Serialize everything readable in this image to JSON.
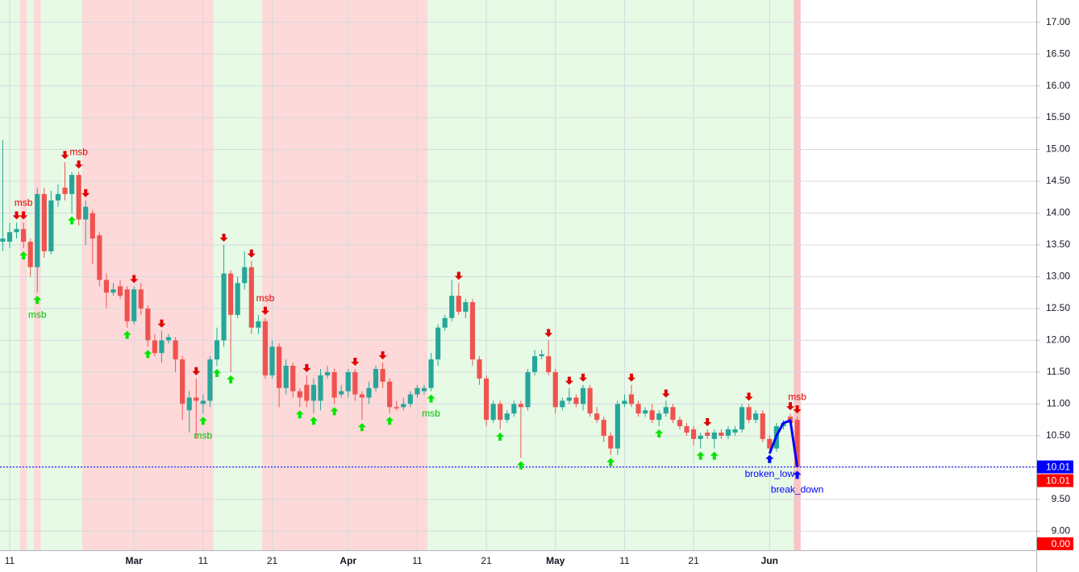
{
  "chart_data": {
    "type": "candlestick",
    "categories": [
      null,
      "11",
      null,
      null,
      null,
      null,
      null,
      null,
      null,
      null,
      null,
      null,
      null,
      null,
      null,
      null,
      null,
      null,
      null,
      "Mar",
      null,
      null,
      null,
      null,
      null,
      null,
      null,
      null,
      null,
      "11",
      null,
      null,
      null,
      null,
      null,
      null,
      null,
      null,
      null,
      "21",
      null,
      null,
      null,
      null,
      null,
      null,
      null,
      null,
      null,
      null,
      "Apr",
      null,
      null,
      null,
      null,
      null,
      null,
      null,
      null,
      null,
      "11",
      null,
      null,
      null,
      null,
      null,
      null,
      null,
      null,
      null,
      "21",
      null,
      null,
      null,
      null,
      null,
      null,
      null,
      null,
      null,
      "May",
      null,
      null,
      null,
      null,
      null,
      null,
      null,
      null,
      null,
      "11",
      null,
      null,
      null,
      null,
      null,
      null,
      null,
      null,
      null,
      "21",
      null,
      null,
      null,
      null,
      null,
      null,
      null,
      null,
      null,
      null,
      "Jun",
      null,
      null,
      null,
      null
    ],
    "open": [
      13.55,
      13.55,
      13.7,
      13.75,
      13.55,
      13.15,
      14.3,
      13.4,
      14.2,
      14.4,
      14.3,
      14.6,
      13.9,
      14.0,
      13.65,
      12.95,
      12.75,
      12.85,
      12.8,
      12.3,
      12.8,
      12.5,
      12.0,
      11.8,
      12.0,
      12.0,
      11.7,
      10.9,
      11.1,
      11.0,
      11.05,
      11.7,
      12.0,
      13.05,
      12.4,
      12.9,
      13.15,
      12.2,
      12.3,
      11.45,
      11.9,
      11.25,
      11.6,
      11.2,
      11.3,
      11.05,
      11.05,
      11.45,
      11.5,
      11.15,
      11.2,
      11.5,
      11.15,
      11.1,
      11.25,
      11.55,
      11.35,
      10.95,
      10.95,
      11.0,
      11.15,
      11.2,
      11.25,
      11.7,
      12.2,
      12.35,
      12.7,
      12.45,
      12.6,
      11.7,
      11.4,
      10.75,
      11.0,
      10.75,
      10.85,
      11.0,
      10.95,
      11.5,
      11.75,
      11.75,
      11.5,
      10.95,
      11.05,
      11.1,
      11.0,
      11.25,
      10.85,
      10.75,
      10.5,
      10.3,
      11.0,
      11.15,
      11.0,
      10.85,
      10.9,
      10.75,
      10.85,
      10.95,
      10.75,
      10.65,
      10.6,
      10.45,
      10.55,
      10.45,
      10.55,
      10.5,
      10.55,
      10.6,
      10.95,
      10.75,
      10.85,
      10.45,
      10.3,
      10.65,
      10.8,
      10.75
    ],
    "high": [
      15.15,
      13.85,
      13.85,
      13.85,
      13.6,
      14.4,
      14.4,
      14.35,
      14.45,
      14.8,
      14.65,
      14.65,
      14.2,
      14.05,
      13.7,
      13.05,
      12.9,
      12.95,
      12.85,
      12.85,
      12.9,
      12.55,
      12.1,
      12.15,
      12.1,
      12.05,
      11.75,
      11.2,
      11.4,
      11.15,
      11.75,
      12.2,
      13.5,
      13.1,
      13.0,
      13.4,
      13.25,
      12.4,
      12.35,
      12.0,
      11.95,
      11.7,
      11.65,
      11.25,
      11.45,
      11.4,
      11.55,
      11.6,
      11.55,
      11.3,
      11.55,
      11.55,
      11.2,
      11.35,
      11.6,
      11.65,
      11.4,
      11.05,
      11.1,
      11.2,
      11.3,
      11.3,
      11.8,
      12.25,
      12.4,
      12.95,
      12.9,
      12.65,
      12.65,
      11.75,
      11.45,
      11.05,
      11.05,
      10.9,
      11.05,
      11.05,
      11.55,
      11.85,
      11.85,
      12.0,
      11.55,
      11.1,
      11.25,
      11.15,
      11.3,
      11.3,
      10.95,
      10.8,
      10.55,
      11.05,
      11.15,
      11.3,
      11.05,
      10.95,
      11.0,
      10.9,
      11.05,
      11.0,
      10.8,
      10.7,
      10.65,
      10.55,
      10.6,
      10.6,
      10.6,
      10.65,
      10.65,
      11.0,
      11.0,
      10.9,
      10.9,
      10.5,
      10.7,
      10.75,
      10.85,
      10.8
    ],
    "low": [
      13.4,
      13.45,
      13.6,
      13.45,
      13.0,
      12.75,
      13.3,
      13.35,
      14.1,
      14.2,
      14.0,
      13.8,
      13.5,
      13.2,
      12.85,
      12.5,
      12.7,
      12.65,
      12.2,
      12.25,
      12.4,
      11.9,
      11.75,
      11.65,
      11.95,
      11.5,
      10.75,
      10.55,
      10.45,
      10.85,
      10.95,
      11.6,
      11.9,
      11.5,
      12.35,
      12.8,
      12.1,
      12.1,
      11.4,
      11.4,
      10.95,
      11.15,
      11.1,
      10.95,
      10.95,
      10.85,
      10.9,
      11.4,
      11.0,
      11.1,
      11.1,
      11.05,
      10.75,
      11.0,
      11.2,
      11.25,
      10.85,
      10.9,
      10.9,
      10.95,
      11.1,
      11.15,
      11.2,
      11.6,
      12.15,
      12.3,
      12.4,
      12.35,
      11.6,
      11.3,
      10.65,
      10.7,
      10.6,
      10.7,
      10.8,
      10.15,
      10.9,
      11.45,
      11.7,
      11.45,
      10.85,
      10.9,
      11.0,
      10.95,
      10.9,
      10.8,
      10.7,
      10.4,
      10.2,
      10.2,
      10.95,
      10.95,
      10.8,
      10.8,
      10.7,
      10.65,
      10.8,
      10.7,
      10.6,
      10.5,
      10.35,
      10.3,
      10.45,
      10.3,
      10.45,
      10.45,
      10.5,
      10.55,
      10.7,
      10.7,
      10.4,
      10.25,
      10.25,
      10.6,
      10.65,
      10.0
    ],
    "close": [
      13.6,
      13.7,
      13.75,
      13.55,
      13.15,
      14.3,
      13.4,
      14.2,
      14.3,
      14.3,
      14.6,
      13.9,
      14.1,
      13.6,
      12.95,
      12.75,
      12.8,
      12.7,
      12.3,
      12.8,
      12.5,
      12.0,
      11.8,
      12.0,
      12.05,
      11.7,
      11.0,
      11.1,
      11.05,
      11.05,
      11.7,
      12.0,
      13.05,
      12.4,
      12.9,
      13.15,
      12.2,
      12.3,
      11.45,
      11.9,
      11.25,
      11.6,
      11.2,
      11.1,
      11.05,
      11.3,
      11.45,
      11.5,
      11.1,
      11.2,
      11.5,
      11.15,
      11.1,
      11.25,
      11.55,
      11.35,
      10.95,
      10.93,
      11.0,
      11.15,
      11.25,
      11.25,
      11.7,
      12.2,
      12.35,
      12.7,
      12.45,
      12.6,
      11.7,
      11.4,
      10.75,
      11.0,
      10.75,
      10.85,
      11.0,
      10.95,
      11.5,
      11.75,
      11.78,
      11.5,
      10.95,
      11.05,
      11.1,
      11.0,
      11.25,
      10.85,
      10.75,
      10.5,
      10.3,
      11.0,
      11.05,
      11.0,
      10.85,
      10.9,
      10.75,
      10.85,
      10.95,
      10.75,
      10.65,
      10.55,
      10.45,
      10.5,
      10.5,
      10.55,
      10.5,
      10.6,
      10.6,
      10.95,
      10.75,
      10.85,
      10.45,
      10.3,
      10.65,
      10.7,
      10.7,
      10.01
    ],
    "up_color": "#26a69a",
    "down_color": "#ef5350",
    "xlim": [
      -0.4,
      149.6
    ],
    "ylim": [
      8.7,
      17.35
    ],
    "yticks": [
      {
        "value": 9,
        "label": "9.00"
      },
      {
        "value": 9.5,
        "label": "9.50"
      },
      {
        "value": 10,
        "label": "10.00"
      },
      {
        "value": 10.5,
        "label": "10.50"
      },
      {
        "value": 11,
        "label": "11.00"
      },
      {
        "value": 11.5,
        "label": "11.50"
      },
      {
        "value": 12,
        "label": "12.00"
      },
      {
        "value": 12.5,
        "label": "12.50"
      },
      {
        "value": 13,
        "label": "13.00"
      },
      {
        "value": 13.5,
        "label": "13.50"
      },
      {
        "value": 14,
        "label": "14.00"
      },
      {
        "value": 14.5,
        "label": "14.50"
      },
      {
        "value": 15,
        "label": "15.00"
      },
      {
        "value": 15.5,
        "label": "15.50"
      },
      {
        "value": 16,
        "label": "16.00"
      },
      {
        "value": 16.5,
        "label": "16.50"
      },
      {
        "value": 17,
        "label": "17.00"
      }
    ],
    "grid": true,
    "bands": [
      {
        "from": 0,
        "to": 2,
        "color": "#e6fae6"
      },
      {
        "from": 3,
        "to": 3,
        "color": "#fdd9d9"
      },
      {
        "from": 4,
        "to": 4,
        "color": "#e6fae6"
      },
      {
        "from": 5,
        "to": 5,
        "color": "#fdd9d9"
      },
      {
        "from": 6,
        "to": 11,
        "color": "#e6fae6"
      },
      {
        "from": 12,
        "to": 30,
        "color": "#fdd9d9"
      },
      {
        "from": 31,
        "to": 37,
        "color": "#e6fae6"
      },
      {
        "from": 38,
        "to": 61,
        "color": "#fdd9d9"
      },
      {
        "from": 62,
        "to": 114,
        "color": "#e6fae6"
      },
      {
        "from": 115,
        "to": 115,
        "color": "#f9c4c4"
      }
    ],
    "signals": {
      "down": {
        "color": "#e00000",
        "indices": [
          2,
          3,
          9,
          11,
          12,
          19,
          23,
          28,
          32,
          36,
          38,
          44,
          51,
          55,
          66,
          79,
          82,
          84,
          91,
          96,
          102,
          108,
          114,
          115
        ]
      },
      "up": {
        "color": "#00e600",
        "indices": [
          3,
          5,
          10,
          18,
          21,
          29,
          31,
          33,
          43,
          45,
          48,
          52,
          56,
          62,
          72,
          75,
          88,
          95,
          101,
          103,
          111
        ]
      },
      "pivot": {
        "color": "#0000ff",
        "indices": [
          111,
          115
        ]
      }
    },
    "annotations": [
      {
        "text": "msb",
        "index": 3,
        "color": "#e00000",
        "side": "above"
      },
      {
        "text": "msb",
        "index": 11,
        "color": "#e00000",
        "side": "above"
      },
      {
        "text": "msb",
        "index": 38,
        "color": "#e00000",
        "side": "above"
      },
      {
        "text": "msb",
        "index": 115,
        "color": "#e00000",
        "side": "above"
      },
      {
        "text": "msb",
        "index": 5,
        "color": "#00c000",
        "side": "below"
      },
      {
        "text": "msb",
        "index": 29,
        "color": "#00c000",
        "side": "below"
      },
      {
        "text": "msb",
        "index": 62,
        "color": "#00c000",
        "side": "below"
      },
      {
        "text": "broken_low",
        "index": 111,
        "color": "#0000ff",
        "side": "below"
      },
      {
        "text": "break_down",
        "index": 115,
        "color": "#0000ff",
        "side": "below"
      }
    ],
    "line_x": [
      111,
      112,
      113,
      114,
      115
    ],
    "line_y": [
      10.22,
      10.5,
      10.7,
      10.74,
      10.01
    ],
    "line_color": "#0000ff",
    "last_price": 10.01,
    "price_labels": [
      {
        "value": 10.01,
        "label": "10.01",
        "color": "#0000ff"
      },
      {
        "value": 10.01,
        "label": "10.01",
        "color": "#ff0000"
      },
      {
        "value": 0,
        "label": "0.00",
        "color": "#ff0000"
      }
    ]
  }
}
